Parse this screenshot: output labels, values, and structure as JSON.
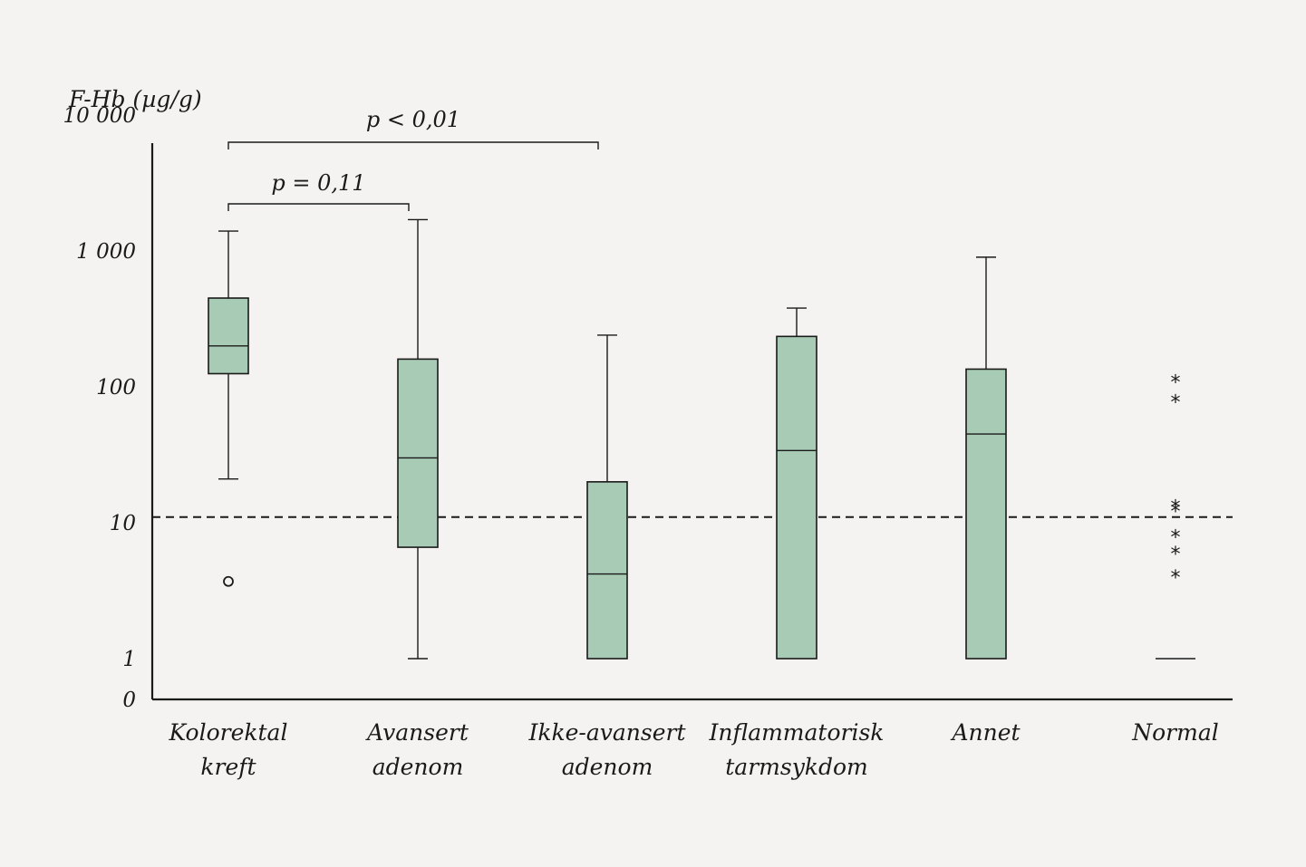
{
  "chart_data": {
    "type": "box",
    "ylabel": "F-Hb (µg/g)",
    "yscale": "log",
    "y_ticks": [
      {
        "value": 0,
        "label": "0"
      },
      {
        "value": 1,
        "label": "1"
      },
      {
        "value": 10,
        "label": "10"
      },
      {
        "value": 100,
        "label": "100"
      },
      {
        "value": 1000,
        "label": "1 000"
      },
      {
        "value": 10000,
        "label": "10 000"
      }
    ],
    "threshold": 11,
    "box_color": "#a8cbb5",
    "categories": [
      {
        "key": "kolorektal",
        "lines": [
          "Kolorektal",
          "kreft"
        ]
      },
      {
        "key": "avansert",
        "lines": [
          "Avansert",
          "adenom"
        ]
      },
      {
        "key": "ikke-avansert",
        "lines": [
          "Ikke-avansert",
          "adenom"
        ]
      },
      {
        "key": "inflammatorisk",
        "lines": [
          "Inflammatorisk",
          "tarmsykdom"
        ]
      },
      {
        "key": "annet",
        "lines": [
          "Annet"
        ]
      },
      {
        "key": "normal",
        "lines": [
          "Normal"
        ]
      }
    ],
    "boxes": [
      {
        "min": 21,
        "q1": 125,
        "median": 200,
        "q3": 450,
        "max": 1400,
        "outliers": [
          3.7
        ],
        "outlier_marker": "circle"
      },
      {
        "min": 1,
        "q1": 6.6,
        "median": 30,
        "q3": 160,
        "max": 1700
      },
      {
        "min": 1,
        "q1": 1,
        "median": 4.2,
        "q3": 20,
        "max": 240
      },
      {
        "min": 1,
        "q1": 1,
        "median": 34,
        "q3": 235,
        "max": 380
      },
      {
        "min": 1,
        "q1": 1,
        "median": 45,
        "q3": 135,
        "max": 900
      },
      {
        "min": 1,
        "q1": 1,
        "median": 1,
        "q3": 1,
        "max": 1,
        "outliers": [
          112,
          80,
          13.5,
          12.6,
          8.1,
          6.1,
          4.1
        ],
        "outlier_marker": "star"
      }
    ],
    "comparisons": [
      {
        "from": 0,
        "to": 2,
        "label": "p < 0,01"
      },
      {
        "from": 0,
        "to": 1,
        "label": "p = 0,11"
      }
    ]
  }
}
